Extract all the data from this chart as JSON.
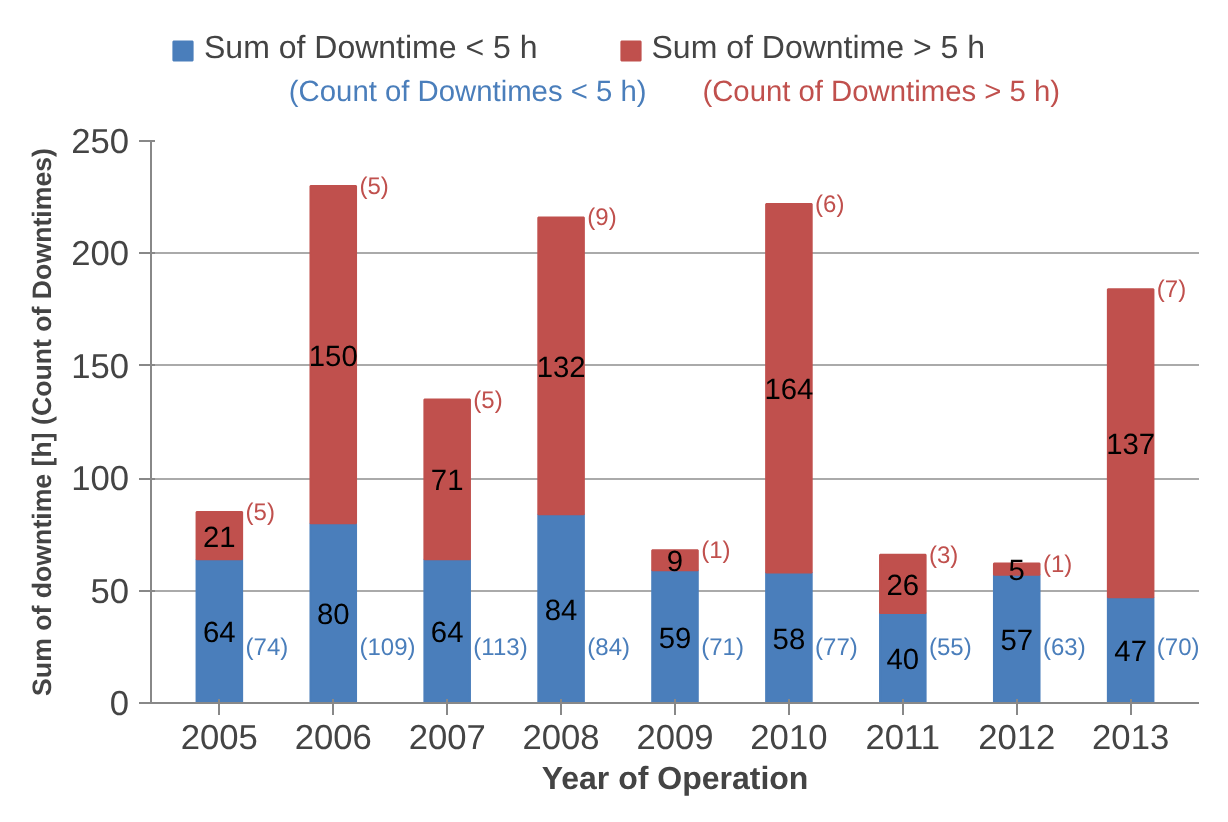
{
  "chart_data": {
    "type": "bar",
    "stacked": true,
    "data_labels": true,
    "grid": "y",
    "legend": "top",
    "xlabel": "Year of Operation",
    "ylabel": "Sum of downtime [h] (Count of Downtimes)",
    "categories": [
      "2005",
      "2006",
      "2007",
      "2008",
      "2009",
      "2010",
      "2011",
      "2012",
      "2013"
    ],
    "series": [
      {
        "name": "Sum of Downtime < 5 h",
        "color": "#4a7ebb",
        "values": [
          64,
          80,
          64,
          84,
          59,
          58,
          40,
          57,
          47
        ]
      },
      {
        "name": "Sum of Downtime > 5 h",
        "color": "#c0504d",
        "values": [
          21,
          150,
          71,
          132,
          9,
          164,
          26,
          5,
          137
        ]
      }
    ],
    "ylim": [
      0,
      250
    ],
    "yticks": [
      0,
      50,
      100,
      150,
      200,
      250
    ],
    "annotations": [
      "(Count of Downtimes < 5 h)",
      "(Count of Downtimes > 5 h)",
      "(74)",
      "(109)",
      "(113)",
      "(84)",
      "(71)",
      "(77)",
      "(55)",
      "(63)",
      "(70)",
      {
        "text": "(5)",
        "x": "2005",
        "y": 85
      },
      {
        "text": "(5)",
        "x": "2006",
        "y": 230
      },
      {
        "text": "(5)",
        "x": "2007",
        "y": 135
      },
      {
        "text": "(9)",
        "x": "2008",
        "y": 216
      },
      {
        "text": "(1)",
        "x": "2009",
        "y": 68
      },
      {
        "text": "(6)",
        "x": "2010",
        "y": 222
      },
      {
        "text": "(3)",
        "x": "2011",
        "y": 66
      },
      {
        "text": "(1)",
        "x": "2012",
        "y": 62
      },
      {
        "text": "(7)",
        "x": "2013",
        "y": 184
      }
    ]
  }
}
